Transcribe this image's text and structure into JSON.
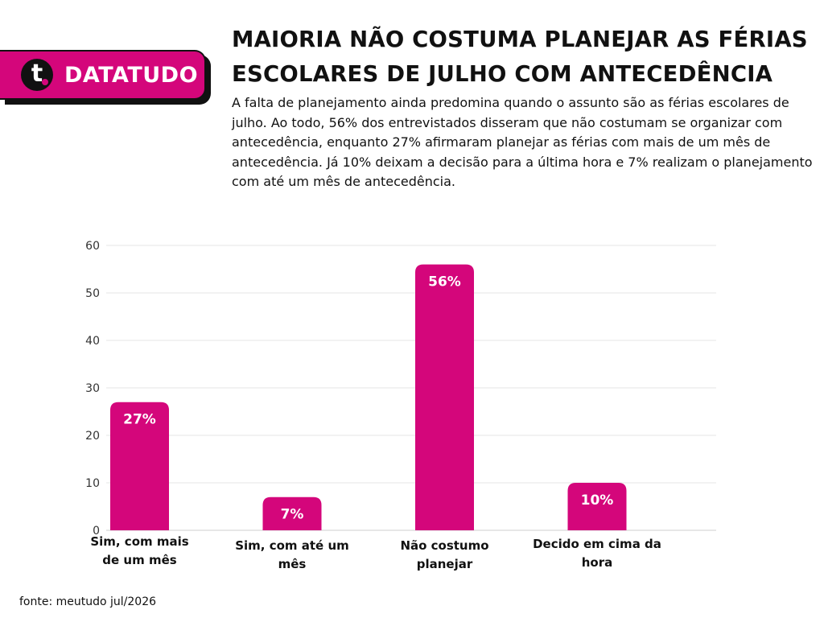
{
  "brand": {
    "name": "DATATUDO",
    "logo_letter": "t",
    "logo_icon": "t-logo-icon",
    "color": "#d4067b"
  },
  "header": {
    "title_line1": "MAIORIA NÃO COSTUMA PLANEJAR AS FÉRIAS",
    "title_line2": "ESCOLARES DE JULHO COM ANTECEDÊNCIA",
    "description": "A falta de planejamento ainda predomina quando o assunto são as férias escolares de julho. Ao todo, 56% dos entrevistados disseram que não costumam se organizar com antecedência, enquanto 27% afirmaram planejar as férias com mais de um mês de antecedência. Já 10% deixam a decisão para a última hora e 7% realizam o planejamento com até um mês de antecedência."
  },
  "chart_data": {
    "type": "bar",
    "categories": [
      "Sim, com mais de um mês",
      "Sim, com até um mês",
      "Não costumo planejar",
      "Decido em cima da hora"
    ],
    "category_lines": [
      [
        "Sim, com mais",
        "de um mês"
      ],
      [
        "Sim, com até um",
        "mês"
      ],
      [
        "Não costumo",
        "planejar"
      ],
      [
        "Decido em cima da",
        "hora"
      ]
    ],
    "values": [
      27,
      7,
      56,
      10
    ],
    "data_labels": [
      "27%",
      "7%",
      "56%",
      "10%"
    ],
    "yticks": [
      0,
      10,
      20,
      30,
      40,
      50,
      60
    ],
    "ylim": [
      0,
      60
    ],
    "grid": true,
    "bar_color": "#d4067b",
    "title": "",
    "xlabel": "",
    "ylabel": ""
  },
  "footer": {
    "source": "fonte: meutudo jul/2026"
  }
}
